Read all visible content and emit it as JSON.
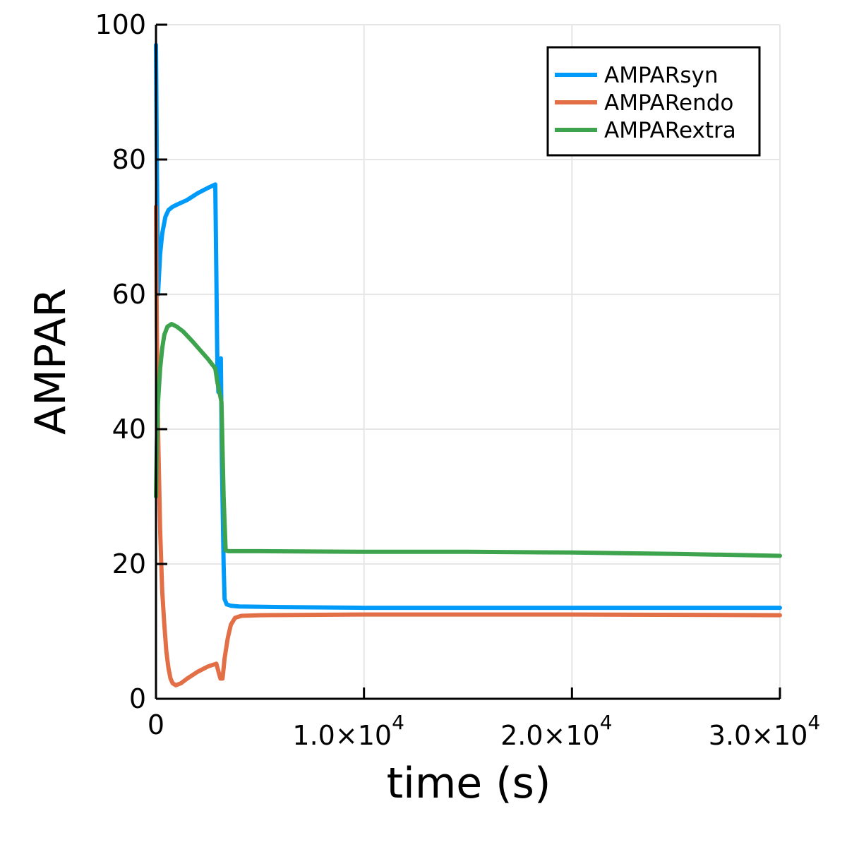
{
  "chart_data": {
    "type": "line",
    "title": "",
    "xlabel": "time (s)",
    "ylabel": "AMPAR",
    "xlim": [
      0,
      30000
    ],
    "ylim": [
      0,
      100
    ],
    "grid": true,
    "legend_position": "top-right",
    "xticks": [
      {
        "value": 0,
        "label": "0",
        "mantissa": "",
        "exponent": ""
      },
      {
        "value": 10000,
        "label": "",
        "mantissa": "1.0×10",
        "exponent": "4"
      },
      {
        "value": 20000,
        "label": "",
        "mantissa": "2.0×10",
        "exponent": "4"
      },
      {
        "value": 30000,
        "label": "",
        "mantissa": "3.0×10",
        "exponent": "4"
      }
    ],
    "yticks": [
      {
        "value": 0,
        "label": "0"
      },
      {
        "value": 20,
        "label": "20"
      },
      {
        "value": 40,
        "label": "40"
      },
      {
        "value": 60,
        "label": "60"
      },
      {
        "value": 80,
        "label": "80"
      },
      {
        "value": 100,
        "label": "100"
      }
    ],
    "series": [
      {
        "name": "AMPARsyn",
        "color": "#009af9",
        "points": [
          [
            0,
            97
          ],
          [
            40,
            80
          ],
          [
            100,
            60
          ],
          [
            200,
            66
          ],
          [
            300,
            69
          ],
          [
            450,
            71.5
          ],
          [
            600,
            72.5
          ],
          [
            800,
            73
          ],
          [
            1000,
            73.3
          ],
          [
            1500,
            74
          ],
          [
            2000,
            75
          ],
          [
            2500,
            75.8
          ],
          [
            2850,
            76.3
          ],
          [
            2900,
            63
          ],
          [
            2950,
            50
          ],
          [
            3000,
            45.5
          ],
          [
            3050,
            49
          ],
          [
            3120,
            50.5
          ],
          [
            3170,
            35
          ],
          [
            3250,
            20
          ],
          [
            3300,
            14.8
          ],
          [
            3400,
            14
          ],
          [
            3600,
            13.8
          ],
          [
            4000,
            13.7
          ],
          [
            6000,
            13.6
          ],
          [
            10000,
            13.5
          ],
          [
            20000,
            13.5
          ],
          [
            30000,
            13.5
          ]
        ]
      },
      {
        "name": "AMPARendo",
        "color": "#e26f46",
        "points": [
          [
            0,
            73
          ],
          [
            40,
            55
          ],
          [
            100,
            40
          ],
          [
            200,
            25
          ],
          [
            300,
            16
          ],
          [
            400,
            11
          ],
          [
            500,
            7
          ],
          [
            600,
            4.5
          ],
          [
            700,
            3
          ],
          [
            800,
            2.3
          ],
          [
            950,
            2
          ],
          [
            1200,
            2.3
          ],
          [
            1500,
            3
          ],
          [
            2000,
            4
          ],
          [
            2500,
            4.8
          ],
          [
            2900,
            5.2
          ],
          [
            3050,
            3.5
          ],
          [
            3100,
            3
          ],
          [
            3200,
            3
          ],
          [
            3300,
            6
          ],
          [
            3450,
            9
          ],
          [
            3600,
            11
          ],
          [
            3800,
            12
          ],
          [
            4100,
            12.3
          ],
          [
            5000,
            12.4
          ],
          [
            10000,
            12.5
          ],
          [
            20000,
            12.5
          ],
          [
            30000,
            12.4
          ]
        ]
      },
      {
        "name": "AMPARextra",
        "color": "#3da44d",
        "points": [
          [
            0,
            30
          ],
          [
            40,
            38
          ],
          [
            100,
            44
          ],
          [
            200,
            49
          ],
          [
            300,
            52
          ],
          [
            400,
            54
          ],
          [
            550,
            55.2
          ],
          [
            750,
            55.6
          ],
          [
            1000,
            55.2
          ],
          [
            1300,
            54.5
          ],
          [
            1700,
            53.2
          ],
          [
            2100,
            51.8
          ],
          [
            2500,
            50.4
          ],
          [
            2850,
            49
          ],
          [
            2950,
            47
          ],
          [
            3050,
            45.5
          ],
          [
            3150,
            44
          ],
          [
            3250,
            30
          ],
          [
            3350,
            22
          ],
          [
            3500,
            21.9
          ],
          [
            5000,
            21.9
          ],
          [
            10000,
            21.8
          ],
          [
            15000,
            21.8
          ],
          [
            20000,
            21.7
          ],
          [
            25000,
            21.5
          ],
          [
            30000,
            21.2
          ]
        ]
      }
    ]
  }
}
